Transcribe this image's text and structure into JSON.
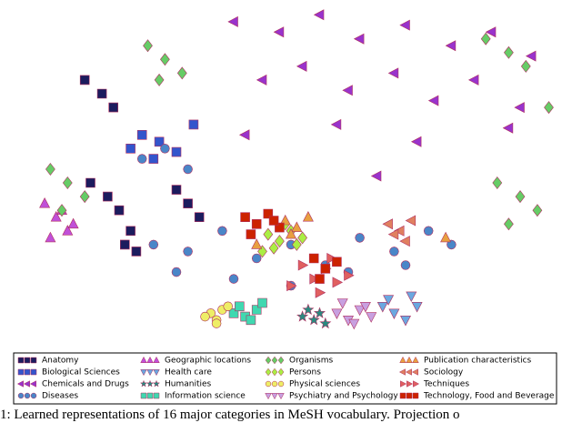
{
  "chart_data": {
    "type": "scatter",
    "legend": "bottom",
    "caption": "1: Learned representations of 16 major categories in MeSH vocabulary. Projection o",
    "xlim": [
      0,
      100
    ],
    "ylim": [
      0,
      100
    ],
    "series": [
      {
        "name": "Anatomy",
        "color": "#1c1c5e",
        "marker": "square",
        "x": [
          15,
          18,
          20,
          30,
          32,
          34,
          14,
          17,
          19,
          22,
          21,
          23
        ],
        "values": [
          48,
          44,
          40,
          46,
          42,
          38,
          78,
          74,
          70,
          34,
          30,
          28
        ]
      },
      {
        "name": "Biological Sciences",
        "color": "#3355cc",
        "marker": "square",
        "x": [
          24,
          27,
          30,
          26,
          22,
          33
        ],
        "values": [
          62,
          60,
          57,
          55,
          58,
          65
        ]
      },
      {
        "name": "Chemicals and Drugs",
        "color": "#9933cc",
        "marker": "tri-left",
        "x": [
          40,
          48,
          55,
          62,
          70,
          78,
          85,
          92,
          45,
          52,
          60,
          68,
          75,
          82,
          90,
          42,
          58,
          72,
          88,
          65
        ],
        "values": [
          95,
          92,
          97,
          90,
          94,
          88,
          92,
          85,
          78,
          82,
          75,
          80,
          72,
          78,
          70,
          62,
          65,
          60,
          64,
          50
        ]
      },
      {
        "name": "Diseases",
        "color": "#4a86c8",
        "marker": "circle",
        "x": [
          26,
          32,
          38,
          44,
          50,
          56,
          62,
          68,
          74,
          30,
          40,
          50,
          60,
          70,
          78,
          28,
          32,
          24
        ],
        "values": [
          30,
          28,
          34,
          26,
          30,
          24,
          32,
          28,
          34,
          22,
          20,
          18,
          22,
          24,
          30,
          58,
          52,
          55
        ]
      },
      {
        "name": "Geographic locations",
        "color": "#c050d8",
        "marker": "tri-up",
        "x": [
          7,
          9,
          11,
          8,
          10,
          12
        ],
        "values": [
          42,
          38,
          34,
          32,
          40,
          36
        ]
      },
      {
        "name": "Health care",
        "color": "#6aa8e0",
        "marker": "tri-down",
        "x": [
          66,
          68,
          70,
          72,
          67,
          71
        ],
        "values": [
          12,
          10,
          8,
          12,
          14,
          15
        ]
      },
      {
        "name": "Humanities",
        "color": "#2a8a80",
        "marker": "star",
        "x": [
          52,
          54,
          55,
          53,
          56
        ],
        "values": [
          9,
          8,
          10,
          11,
          7
        ]
      },
      {
        "name": "Information science",
        "color": "#40d8b0",
        "marker": "square",
        "x": [
          40,
          42,
          44,
          41,
          43,
          45
        ],
        "values": [
          10,
          9,
          11,
          12,
          8,
          13
        ]
      },
      {
        "name": "Organisms",
        "color": "#66cc66",
        "marker": "diamond",
        "x": [
          25,
          28,
          31,
          27,
          8,
          11,
          14,
          10,
          86,
          90,
          93,
          88,
          84,
          88,
          91,
          95
        ],
        "values": [
          88,
          84,
          80,
          78,
          52,
          48,
          44,
          40,
          48,
          44,
          40,
          36,
          90,
          86,
          82,
          70
        ]
      },
      {
        "name": "Persons",
        "color": "#aaee44",
        "marker": "diamond",
        "x": [
          46,
          48,
          50,
          47,
          49,
          51,
          45,
          52
        ],
        "values": [
          33,
          31,
          34,
          29,
          36,
          30,
          28,
          32
        ]
      },
      {
        "name": "Physical sciences",
        "color": "#eeee66",
        "marker": "circle",
        "x": [
          36,
          37,
          38,
          35,
          39,
          37
        ],
        "values": [
          10,
          8,
          11,
          9,
          12,
          7
        ]
      },
      {
        "name": "Psychiatry and Psychology",
        "color": "#c8a0e0",
        "marker": "tri-down",
        "x": [
          58,
          60,
          62,
          64,
          59,
          63,
          61
        ],
        "values": [
          10,
          8,
          11,
          9,
          13,
          12,
          7
        ]
      },
      {
        "name": "Publication characteristics",
        "color": "#e8a040",
        "marker": "tri-up",
        "x": [
          49,
          51,
          53,
          50,
          44,
          77
        ],
        "values": [
          37,
          35,
          38,
          33,
          30,
          32
        ]
      },
      {
        "name": "Sociology",
        "color": "#e08060",
        "marker": "tri-left",
        "x": [
          67,
          69,
          71,
          68,
          70
        ],
        "values": [
          36,
          34,
          37,
          33,
          31
        ]
      },
      {
        "name": "Techniques",
        "color": "#e06060",
        "marker": "tri-right",
        "x": [
          52,
          54,
          56,
          58,
          55,
          57,
          50,
          60
        ],
        "values": [
          24,
          20,
          23,
          19,
          16,
          26,
          18,
          21
        ]
      },
      {
        "name": "Technology, Food and Beverage",
        "color": "#cc2200",
        "marker": "square",
        "x": [
          42,
          44,
          46,
          48,
          43,
          47,
          54,
          56,
          58,
          55
        ],
        "values": [
          38,
          36,
          39,
          35,
          33,
          37,
          26,
          23,
          25,
          20
        ]
      }
    ]
  }
}
